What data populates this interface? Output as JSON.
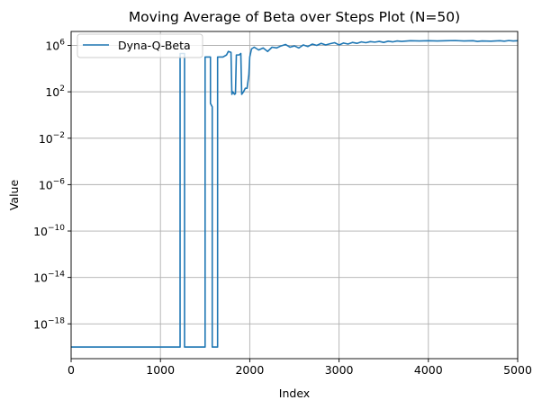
{
  "chart_data": {
    "type": "line",
    "title": "Moving Average of Beta over Steps Plot (N=50)",
    "xlabel": "Index",
    "ylabel": "Value",
    "xlim": [
      0,
      5000
    ],
    "ylim_log10": [
      -21.0,
      7.2
    ],
    "yscale": "log",
    "grid": true,
    "legend_position": "top-left",
    "x_ticks": [
      "0",
      "1000",
      "2000",
      "3000",
      "4000",
      "5000"
    ],
    "y_ticks": [
      {
        "base": "10",
        "exp": "6",
        "value": 1000000
      },
      {
        "base": "10",
        "exp": "2",
        "value": 100
      },
      {
        "base": "10",
        "exp": "−2",
        "value": 0.01
      },
      {
        "base": "10",
        "exp": "−6",
        "value": 1e-06
      },
      {
        "base": "10",
        "exp": "−10",
        "value": 1e-10
      },
      {
        "base": "10",
        "exp": "−14",
        "value": 1e-14
      },
      {
        "base": "10",
        "exp": "−18",
        "value": 1e-18
      }
    ],
    "series": [
      {
        "name": "Dyna-Q-Beta",
        "color": "#1f77b4",
        "points": [
          [
            0,
            1e-20
          ],
          [
            1220,
            1e-20
          ],
          [
            1220,
            200000
          ],
          [
            1270,
            200000
          ],
          [
            1270,
            1e-20
          ],
          [
            1500,
            1e-20
          ],
          [
            1500,
            100000
          ],
          [
            1560,
            100000
          ],
          [
            1560,
            10
          ],
          [
            1580,
            5
          ],
          [
            1580,
            1e-20
          ],
          [
            1640,
            1e-20
          ],
          [
            1640,
            100000
          ],
          [
            1700,
            100000
          ],
          [
            1740,
            150000
          ],
          [
            1760,
            300000
          ],
          [
            1790,
            250000
          ],
          [
            1800,
            60
          ],
          [
            1810,
            100
          ],
          [
            1830,
            60
          ],
          [
            1840,
            70
          ],
          [
            1850,
            150000
          ],
          [
            1880,
            150000
          ],
          [
            1900,
            200000
          ],
          [
            1910,
            60
          ],
          [
            1930,
            100
          ],
          [
            1950,
            200
          ],
          [
            1970,
            200
          ],
          [
            1990,
            3000
          ],
          [
            2000,
            100000
          ],
          [
            2020,
            500000
          ],
          [
            2050,
            700000
          ],
          [
            2100,
            400000
          ],
          [
            2150,
            600000
          ],
          [
            2200,
            300000
          ],
          [
            2250,
            700000
          ],
          [
            2300,
            600000
          ],
          [
            2350,
            900000
          ],
          [
            2400,
            1200000
          ],
          [
            2450,
            700000
          ],
          [
            2500,
            900000
          ],
          [
            2550,
            600000
          ],
          [
            2600,
            1100000
          ],
          [
            2650,
            800000
          ],
          [
            2700,
            1300000
          ],
          [
            2750,
            1000000
          ],
          [
            2800,
            1500000
          ],
          [
            2850,
            1100000
          ],
          [
            2900,
            1400000
          ],
          [
            2950,
            1700000
          ],
          [
            3000,
            1100000
          ],
          [
            3050,
            1600000
          ],
          [
            3100,
            1300000
          ],
          [
            3150,
            1800000
          ],
          [
            3200,
            1500000
          ],
          [
            3250,
            2000000
          ],
          [
            3300,
            1700000
          ],
          [
            3350,
            2100000
          ],
          [
            3400,
            1900000
          ],
          [
            3450,
            2200000
          ],
          [
            3500,
            1800000
          ],
          [
            3550,
            2300000
          ],
          [
            3600,
            2000000
          ],
          [
            3650,
            2400000
          ],
          [
            3700,
            2200000
          ],
          [
            3800,
            2500000
          ],
          [
            3900,
            2400000
          ],
          [
            4000,
            2500000
          ],
          [
            4100,
            2400000
          ],
          [
            4200,
            2500000
          ],
          [
            4300,
            2600000
          ],
          [
            4400,
            2400000
          ],
          [
            4500,
            2500000
          ],
          [
            4550,
            2200000
          ],
          [
            4600,
            2400000
          ],
          [
            4700,
            2300000
          ],
          [
            4800,
            2500000
          ],
          [
            4850,
            2300000
          ],
          [
            4900,
            2600000
          ],
          [
            4950,
            2400000
          ],
          [
            5000,
            2500000
          ]
        ]
      }
    ]
  }
}
